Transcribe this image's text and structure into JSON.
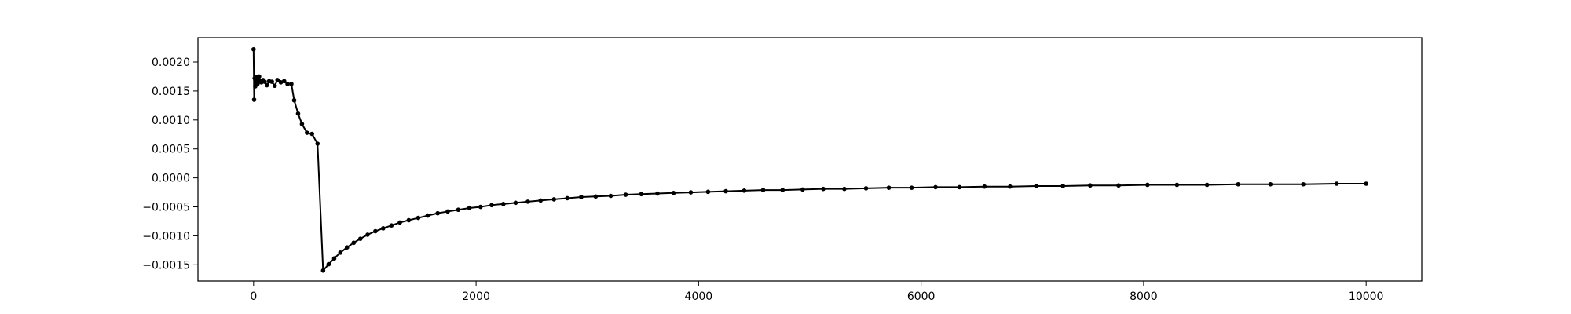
{
  "chart_data": {
    "type": "line",
    "title": "",
    "xlabel": "",
    "ylabel": "",
    "xlim": [
      -500,
      10500
    ],
    "ylim": [
      -0.00178,
      0.00242
    ],
    "grid": false,
    "x_ticks": [
      0,
      2000,
      4000,
      6000,
      8000,
      10000
    ],
    "x_tick_labels": [
      "0",
      "2000",
      "4000",
      "6000",
      "8000",
      "10000"
    ],
    "y_ticks": [
      0.002,
      0.0015,
      0.001,
      0.0005,
      0,
      -0.0005,
      -0.001,
      -0.0015
    ],
    "y_tick_labels": [
      "0.0020",
      "0.0015",
      "0.0010",
      "0.0005",
      "0.0000",
      "−0.0005",
      "−0.0010",
      "−0.0015"
    ],
    "series": [
      {
        "color": "#000000",
        "marker": "circle",
        "points": [
          [
            0,
            0.00222
          ],
          [
            5,
            0.00135
          ],
          [
            10,
            0.00172
          ],
          [
            15,
            0.00158
          ],
          [
            20,
            0.00168
          ],
          [
            25,
            0.00163
          ],
          [
            30,
            0.00174
          ],
          [
            35,
            0.00162
          ],
          [
            40,
            0.00171
          ],
          [
            45,
            0.00166
          ],
          [
            50,
            0.00175
          ],
          [
            60,
            0.00168
          ],
          [
            70,
            0.00165
          ],
          [
            85,
            0.00169
          ],
          [
            100,
            0.00166
          ],
          [
            120,
            0.0016
          ],
          [
            140,
            0.00167
          ],
          [
            165,
            0.00166
          ],
          [
            190,
            0.00159
          ],
          [
            215,
            0.00169
          ],
          [
            245,
            0.00165
          ],
          [
            275,
            0.00167
          ],
          [
            305,
            0.00162
          ],
          [
            340,
            0.00162
          ],
          [
            365,
            0.00134
          ],
          [
            400,
            0.00111
          ],
          [
            435,
            0.00093
          ],
          [
            480,
            0.00078
          ],
          [
            525,
            0.00076
          ],
          [
            575,
            0.00059
          ],
          [
            625,
            -0.0016
          ],
          [
            675,
            -0.00149
          ],
          [
            725,
            -0.00139
          ],
          [
            780,
            -0.00129
          ],
          [
            840,
            -0.0012
          ],
          [
            900,
            -0.00112
          ],
          [
            960,
            -0.00105
          ],
          [
            1025,
            -0.00098
          ],
          [
            1095,
            -0.00092
          ],
          [
            1165,
            -0.00087
          ],
          [
            1240,
            -0.00082
          ],
          [
            1315,
            -0.00077
          ],
          [
            1395,
            -0.00073
          ],
          [
            1480,
            -0.00069
          ],
          [
            1565,
            -0.00065
          ],
          [
            1655,
            -0.00061
          ],
          [
            1745,
            -0.00058
          ],
          [
            1840,
            -0.00055
          ],
          [
            1940,
            -0.00052
          ],
          [
            2040,
            -0.0005
          ],
          [
            2140,
            -0.00047
          ],
          [
            2245,
            -0.00045
          ],
          [
            2355,
            -0.00043
          ],
          [
            2465,
            -0.00041
          ],
          [
            2580,
            -0.00039
          ],
          [
            2700,
            -0.00037
          ],
          [
            2820,
            -0.00035
          ],
          [
            2945,
            -0.00033
          ],
          [
            3075,
            -0.00032
          ],
          [
            3210,
            -0.00031
          ],
          [
            3345,
            -0.00029
          ],
          [
            3485,
            -0.00028
          ],
          [
            3630,
            -0.00027
          ],
          [
            3775,
            -0.00026
          ],
          [
            3930,
            -0.00025
          ],
          [
            4085,
            -0.00024
          ],
          [
            4245,
            -0.00023
          ],
          [
            4410,
            -0.00022
          ],
          [
            4580,
            -0.00021
          ],
          [
            4755,
            -0.00021
          ],
          [
            4935,
            -0.0002
          ],
          [
            5120,
            -0.00019
          ],
          [
            5310,
            -0.00019
          ],
          [
            5505,
            -0.00018
          ],
          [
            5710,
            -0.00017
          ],
          [
            5915,
            -0.00017
          ],
          [
            6130,
            -0.00016
          ],
          [
            6345,
            -0.00016
          ],
          [
            6570,
            -0.00015
          ],
          [
            6800,
            -0.00015
          ],
          [
            7035,
            -0.00014
          ],
          [
            7275,
            -0.00014
          ],
          [
            7520,
            -0.00013
          ],
          [
            7775,
            -0.00013
          ],
          [
            8035,
            -0.00012
          ],
          [
            8300,
            -0.00012
          ],
          [
            8570,
            -0.00012
          ],
          [
            8850,
            -0.00011
          ],
          [
            9140,
            -0.00011
          ],
          [
            9435,
            -0.00011
          ],
          [
            9735,
            -0.0001
          ],
          [
            10000,
            -0.0001
          ]
        ]
      }
    ]
  }
}
